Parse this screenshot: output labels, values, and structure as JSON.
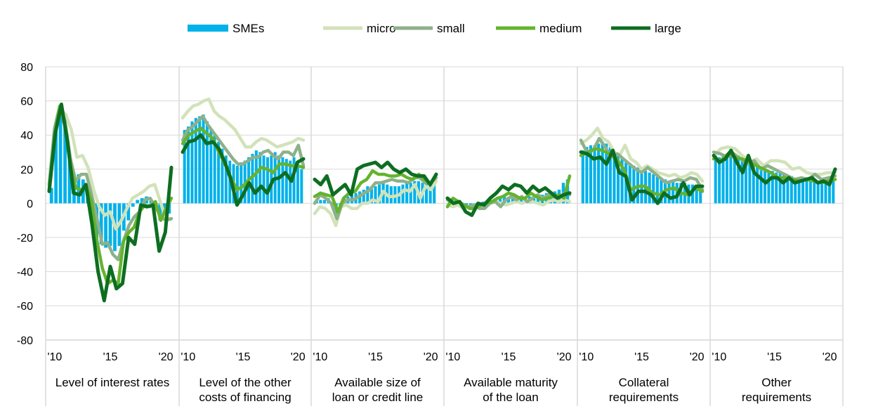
{
  "chart_data": {
    "type": "bar+line",
    "yaxis": {
      "min": -80,
      "max": 80,
      "step": 20,
      "ticks": [
        "80",
        "60",
        "40",
        "20",
        "0",
        "-20",
        "-40",
        "-60",
        "-80"
      ]
    },
    "xaxis": {
      "start_year": 2009.5,
      "end_year": 2020.5,
      "tick_labels": [
        "'10",
        "'15",
        "'20"
      ],
      "tick_years": [
        2010,
        2015,
        2020
      ]
    },
    "legend": {
      "position": "top-center"
    },
    "series": [
      {
        "key": "smes",
        "name": "SMEs",
        "type": "bar",
        "color": "#00b1ea"
      },
      {
        "key": "micro",
        "name": "micro",
        "type": "line",
        "color": "#d2e2b9"
      },
      {
        "key": "small",
        "name": "small",
        "type": "line",
        "color": "#8db18a"
      },
      {
        "key": "medium",
        "name": "medium",
        "type": "line",
        "color": "#65b32e"
      },
      {
        "key": "large",
        "name": "large",
        "type": "line",
        "color": "#0d6e21"
      }
    ],
    "panels": [
      {
        "label": [
          "Level of interest rates"
        ],
        "smes": [
          9,
          43,
          57,
          48,
          28,
          12,
          17,
          14,
          5,
          -11,
          -20,
          -24,
          -26,
          -25,
          -28,
          -25,
          -16,
          -10,
          -2,
          2,
          3,
          4,
          2,
          0,
          -10,
          -5,
          -6
        ],
        "micro": [
          12,
          43,
          55,
          52,
          43,
          27,
          28,
          21,
          8,
          -2,
          -7,
          -5,
          -15,
          -10,
          -3,
          3,
          5,
          7,
          10,
          11,
          1,
          -9,
          -9
        ],
        "small": [
          11,
          44,
          57,
          48,
          26,
          13,
          17,
          17,
          5,
          -9,
          -24,
          -23,
          -30,
          -33,
          -22,
          -13,
          -8,
          -5,
          2,
          3,
          -2,
          -8,
          -10,
          -9
        ],
        "medium": [
          8,
          40,
          57,
          45,
          22,
          9,
          8,
          10,
          1,
          -22,
          -38,
          -47,
          -45,
          -47,
          -22,
          -17,
          -14,
          -5,
          -1,
          -2,
          1,
          -10,
          -3,
          3
        ],
        "large": [
          7,
          41,
          58,
          36,
          6,
          5,
          11,
          -12,
          -40,
          -57,
          -37,
          -50,
          -47,
          -20,
          -24,
          -1,
          -2,
          -1,
          -28,
          -17,
          21
        ]
      },
      {
        "label": [
          "Level of the other",
          "costs of financing"
        ],
        "smes": [
          43,
          45,
          48,
          50,
          51,
          52,
          48,
          44,
          40,
          36,
          32,
          28,
          25,
          23,
          22,
          24,
          25,
          27,
          29,
          31,
          30,
          28,
          27,
          28,
          30,
          28,
          27,
          26,
          25,
          27,
          23,
          20
        ],
        "micro": [
          50,
          54,
          57,
          58,
          60,
          61,
          54,
          51,
          49,
          46,
          43,
          38,
          33,
          33,
          36,
          38,
          37,
          35,
          33,
          34,
          35,
          36,
          38,
          37
        ],
        "small": [
          37,
          43,
          45,
          48,
          51,
          46,
          42,
          38,
          34,
          30,
          26,
          23,
          23,
          25,
          27,
          27,
          30,
          31,
          28,
          26,
          30,
          30,
          28,
          34,
          22
        ],
        "medium": [
          35,
          40,
          42,
          44,
          41,
          38,
          30,
          23,
          15,
          8,
          10,
          14,
          17,
          21,
          20,
          18,
          23,
          23,
          22,
          22,
          21
        ],
        "large": [
          30,
          36,
          37,
          40,
          35,
          36,
          32,
          24,
          14,
          -1,
          5,
          12,
          6,
          10,
          6,
          14,
          15,
          18,
          13,
          24,
          26
        ]
      },
      {
        "label": [
          "Available size of",
          "loan or credit line"
        ],
        "smes": [
          2,
          2,
          2,
          3,
          -1,
          -6,
          -1,
          3,
          4,
          5,
          6,
          7,
          8,
          10,
          10,
          10,
          11,
          12,
          11,
          10,
          10,
          10,
          11,
          12,
          12,
          13,
          13,
          12,
          12,
          13,
          14
        ],
        "micro": [
          -6,
          -2,
          -3,
          -6,
          -13,
          -2,
          -1,
          -3,
          -3,
          0,
          0,
          2,
          1,
          7,
          4,
          4,
          5,
          8,
          7,
          11,
          3,
          10,
          8,
          13
        ],
        "small": [
          0,
          5,
          3,
          0,
          -9,
          0,
          2,
          2,
          4,
          6,
          8,
          12,
          12,
          13,
          14,
          13,
          13,
          12,
          15,
          15,
          12,
          12,
          15
        ],
        "medium": [
          4,
          6,
          5,
          4,
          -5,
          3,
          6,
          7,
          12,
          14,
          19,
          17,
          17,
          16,
          16,
          17,
          15,
          14,
          17,
          14,
          11,
          17
        ],
        "large": [
          14,
          11,
          16,
          5,
          8,
          11,
          5,
          20,
          22,
          23,
          24,
          21,
          24,
          20,
          18,
          20,
          17,
          16,
          16,
          11,
          17
        ]
      },
      {
        "label": [
          "Available maturity",
          "of the loan"
        ],
        "smes": [
          1,
          1,
          0,
          -2,
          -3,
          -3,
          -1,
          0,
          1,
          2,
          2,
          3,
          3,
          4,
          3,
          3,
          3,
          3,
          4,
          4,
          3,
          4,
          5,
          6,
          6,
          7,
          8,
          12,
          14
        ],
        "micro": [
          -1,
          -2,
          -1,
          -3,
          -2,
          -1,
          -2,
          -1,
          0,
          1,
          0,
          -1,
          0,
          1,
          0,
          1,
          1,
          0,
          -1,
          1,
          2,
          1,
          2,
          1
        ],
        "small": [
          2,
          0,
          1,
          -1,
          -2,
          -1,
          -3,
          -3,
          0,
          1,
          -2,
          2,
          4,
          2,
          4,
          1,
          3,
          5,
          3,
          5,
          4,
          3,
          6,
          5
        ],
        "medium": [
          -2,
          3,
          1,
          -1,
          -3,
          -3,
          -1,
          0,
          1,
          3,
          4,
          6,
          5,
          3,
          3,
          6,
          4,
          2,
          3,
          4,
          5,
          3,
          16
        ],
        "large": [
          3,
          0,
          1,
          -5,
          -7,
          0,
          -1,
          3,
          6,
          10,
          8,
          11,
          10,
          6,
          10,
          7,
          9,
          6,
          3,
          5,
          6
        ]
      },
      {
        "label": [
          "Collateral",
          "requirements"
        ],
        "smes": [
          31,
          33,
          34,
          34,
          35,
          36,
          35,
          33,
          30,
          28,
          26,
          24,
          23,
          22,
          21,
          20,
          19,
          18,
          17,
          16,
          15,
          14,
          13,
          13,
          12,
          12,
          12,
          11,
          11,
          10,
          8
        ],
        "micro": [
          35,
          37,
          40,
          44,
          38,
          36,
          30,
          28,
          34,
          26,
          24,
          20,
          22,
          20,
          18,
          17,
          16,
          17,
          15,
          16,
          18,
          17,
          13
        ],
        "small": [
          37,
          30,
          31,
          38,
          33,
          27,
          29,
          26,
          23,
          20,
          18,
          21,
          18,
          15,
          12,
          13,
          14,
          13,
          15,
          14,
          8
        ],
        "medium": [
          28,
          30,
          32,
          31,
          29,
          26,
          20,
          8,
          10,
          10,
          6,
          5,
          8,
          9,
          6,
          5,
          9,
          7
        ],
        "large": [
          30,
          29,
          26,
          27,
          23,
          31,
          18,
          16,
          2,
          7,
          7,
          5,
          0,
          6,
          3,
          4,
          12,
          5,
          10,
          10
        ]
      },
      {
        "label": [
          "Other",
          "requirements"
        ],
        "smes": [
          28,
          27,
          28,
          29,
          30,
          29,
          28,
          26,
          25,
          24,
          23,
          22,
          21,
          20,
          19,
          19,
          18,
          18,
          17,
          16,
          16,
          15,
          15,
          14,
          14,
          14,
          13,
          13,
          14,
          14,
          13,
          13
        ],
        "micro": [
          28,
          32,
          33,
          32,
          28,
          24,
          26,
          22,
          25,
          25,
          24,
          20,
          21,
          18,
          17,
          17,
          18,
          18
        ],
        "small": [
          30,
          29,
          27,
          29,
          26,
          23,
          25,
          20,
          22,
          20,
          18,
          16,
          14,
          15,
          14,
          17,
          14,
          15,
          16
        ],
        "medium": [
          26,
          25,
          29,
          27,
          26,
          24,
          22,
          20,
          18,
          15,
          15,
          14,
          13,
          14,
          13,
          12,
          13,
          14
        ],
        "large": [
          28,
          24,
          26,
          31,
          24,
          18,
          28,
          18,
          15,
          12,
          15,
          15,
          12,
          15,
          12,
          13,
          14,
          15,
          12,
          13,
          11,
          20
        ]
      }
    ]
  }
}
